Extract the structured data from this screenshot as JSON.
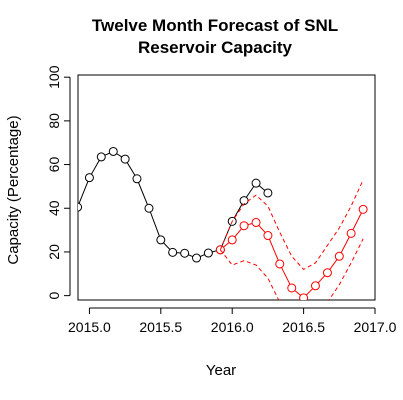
{
  "chart_data": {
    "type": "line",
    "title_lines": [
      "Twelve Month Forecast of SNL",
      "Reservoir Capacity"
    ],
    "xlabel": "Year",
    "ylabel": "Capacity (Percentage)",
    "xlim": [
      2014.92,
      2017.0
    ],
    "ylim": [
      -2,
      101
    ],
    "x_ticks": [
      2015.0,
      2015.5,
      2016.0,
      2016.5,
      2017.0
    ],
    "x_tick_labels": [
      "2015.0",
      "2015.5",
      "2016.0",
      "2016.5",
      "2017.0"
    ],
    "y_ticks": [
      0,
      20,
      40,
      60,
      80,
      100
    ],
    "y_tick_labels": [
      "0",
      "20",
      "40",
      "60",
      "80",
      "100"
    ],
    "colors": {
      "observed": "#000000",
      "forecast": "#ff0000"
    },
    "series": [
      {
        "key": "observed",
        "style": "line-points",
        "x": [
          2014.917,
          2015.0,
          2015.083,
          2015.167,
          2015.25,
          2015.333,
          2015.417,
          2015.5,
          2015.583,
          2015.667,
          2015.75,
          2015.833,
          2015.917,
          2016.0,
          2016.083,
          2016.167,
          2016.25
        ],
        "y": [
          40.5,
          54,
          63.5,
          66,
          62.5,
          53.5,
          40,
          25.5,
          19.8,
          19.4,
          17.2,
          19.5,
          21,
          34,
          43.5,
          51.5,
          47
        ]
      },
      {
        "key": "forecast",
        "style": "line-points",
        "x": [
          2015.917,
          2016.0,
          2016.083,
          2016.167,
          2016.25,
          2016.333,
          2016.417,
          2016.5,
          2016.583,
          2016.667,
          2016.75,
          2016.833,
          2016.917
        ],
        "y": [
          21,
          25.5,
          32,
          33.5,
          27.5,
          14.5,
          3.5,
          -1,
          4.5,
          10.5,
          18,
          28.5,
          39.5
        ]
      },
      {
        "key": "forecast_upper",
        "style": "dashed",
        "x": [
          2015.917,
          2016.0,
          2016.083,
          2016.167,
          2016.25,
          2016.333,
          2016.417,
          2016.5,
          2016.583,
          2016.667,
          2016.75,
          2016.833,
          2016.917
        ],
        "y": [
          21,
          34,
          42,
          46,
          41,
          29,
          18,
          12,
          15,
          23,
          31,
          41,
          53
        ]
      },
      {
        "key": "forecast_lower",
        "style": "dashed",
        "x": [
          2015.917,
          2016.0,
          2016.083,
          2016.167,
          2016.25,
          2016.333,
          2016.417,
          2016.5,
          2016.583,
          2016.667,
          2016.75,
          2016.833,
          2016.917
        ],
        "y": [
          21,
          14,
          16,
          14,
          8,
          -3,
          -12,
          -15,
          -10,
          -3,
          5,
          15,
          26
        ]
      }
    ]
  }
}
